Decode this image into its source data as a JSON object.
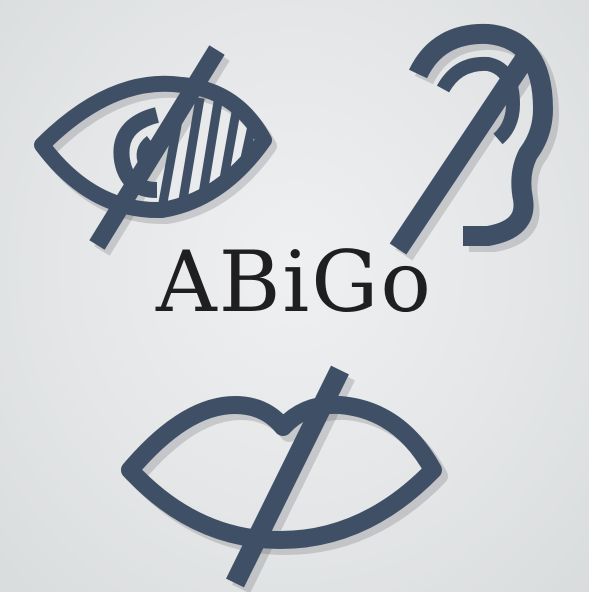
{
  "logo": {
    "wordmark": "ABiGo",
    "icons": [
      "visual-impairment-icon",
      "hearing-impairment-icon",
      "speech-impairment-icon"
    ]
  },
  "colors": {
    "background": "#e3e5e6",
    "icon_fill": "#3f5066",
    "text": "#1f1f22"
  }
}
